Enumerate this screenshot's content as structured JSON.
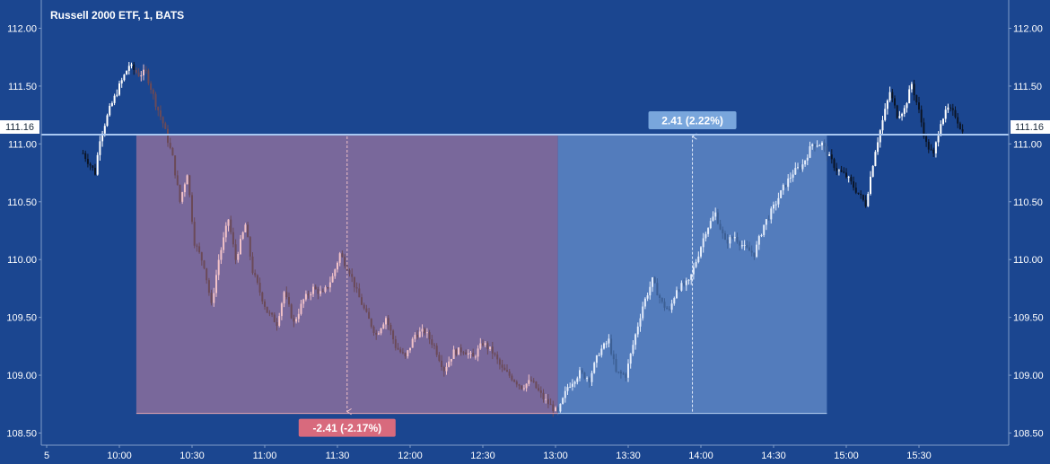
{
  "chart_data": {
    "type": "candlestick",
    "title": "Russell 2000 ETF, 1, BATS",
    "ylim": [
      108.4,
      112.1
    ],
    "y_ticks": [
      "112.00",
      "111.50",
      "111.00",
      "110.50",
      "110.00",
      "109.50",
      "109.00",
      "108.50"
    ],
    "x_ticks": [
      "5",
      "10:00",
      "10:30",
      "11:00",
      "11:30",
      "12:00",
      "12:30",
      "13:00",
      "13:30",
      "14:00",
      "14:30",
      "15:00",
      "15:30"
    ],
    "current_price_label": "111.16",
    "reference_level": 111.08,
    "grid": false,
    "colors": {
      "background": "#1b4690",
      "up": "#ffffff",
      "down": "#0b1424",
      "decline_zone": "#8a6f9e",
      "rally_zone": "#5d86c4",
      "decline_candle_up": "#f2c2c8",
      "decline_candle_down": "#6b4a58",
      "rally_candle_up": "#e3ecfb",
      "rally_candle_down": "#3c5f94",
      "level_line": "#a9c8f2",
      "decline_badge": "#d86a7d",
      "rally_badge": "#79a6dc"
    },
    "decline_measure": {
      "label": "-2.41 (-2.17%)",
      "start_time": "10:07",
      "end_time": "13:01",
      "from_price": 111.08,
      "to_price": 108.67
    },
    "rally_measure": {
      "label": "2.41 (2.22%)",
      "start_time": "13:01",
      "end_time": "14:52",
      "from_price": 108.67,
      "to_price": 111.08
    },
    "path_anchors": [
      [
        "09:45",
        110.92
      ],
      [
        "09:50",
        110.75
      ],
      [
        "09:52",
        111.05
      ],
      [
        "09:56",
        111.3
      ],
      [
        "10:00",
        111.5
      ],
      [
        "10:04",
        111.68
      ],
      [
        "10:08",
        111.6
      ],
      [
        "10:11",
        111.62
      ],
      [
        "10:15",
        111.35
      ],
      [
        "10:18",
        111.18
      ],
      [
        "10:22",
        110.88
      ],
      [
        "10:25",
        110.5
      ],
      [
        "10:28",
        110.75
      ],
      [
        "10:31",
        110.15
      ],
      [
        "10:35",
        109.95
      ],
      [
        "10:38",
        109.6
      ],
      [
        "10:41",
        110.0
      ],
      [
        "10:45",
        110.35
      ],
      [
        "10:48",
        110.0
      ],
      [
        "10:52",
        110.3
      ],
      [
        "10:55",
        109.9
      ],
      [
        "10:58",
        109.72
      ],
      [
        "11:01",
        109.55
      ],
      [
        "11:05",
        109.45
      ],
      [
        "11:08",
        109.72
      ],
      [
        "11:12",
        109.45
      ],
      [
        "11:16",
        109.65
      ],
      [
        "11:20",
        109.75
      ],
      [
        "11:24",
        109.7
      ],
      [
        "11:28",
        109.85
      ],
      [
        "11:31",
        110.05
      ],
      [
        "11:35",
        109.9
      ],
      [
        "11:38",
        109.72
      ],
      [
        "11:42",
        109.52
      ],
      [
        "11:46",
        109.35
      ],
      [
        "11:50",
        109.5
      ],
      [
        "11:54",
        109.25
      ],
      [
        "11:58",
        109.15
      ],
      [
        "12:02",
        109.35
      ],
      [
        "12:06",
        109.38
      ],
      [
        "12:10",
        109.25
      ],
      [
        "12:14",
        109.05
      ],
      [
        "12:18",
        109.2
      ],
      [
        "12:22",
        109.22
      ],
      [
        "12:26",
        109.15
      ],
      [
        "12:30",
        109.28
      ],
      [
        "12:34",
        109.2
      ],
      [
        "12:38",
        109.05
      ],
      [
        "12:42",
        108.98
      ],
      [
        "12:46",
        108.9
      ],
      [
        "12:50",
        108.95
      ],
      [
        "12:55",
        108.8
      ],
      [
        "13:01",
        108.67
      ],
      [
        "13:05",
        108.9
      ],
      [
        "13:10",
        109.02
      ],
      [
        "13:14",
        108.97
      ],
      [
        "13:18",
        109.2
      ],
      [
        "13:22",
        109.3
      ],
      [
        "13:25",
        109.02
      ],
      [
        "13:29",
        109.0
      ],
      [
        "13:33",
        109.35
      ],
      [
        "13:36",
        109.6
      ],
      [
        "13:40",
        109.82
      ],
      [
        "13:44",
        109.62
      ],
      [
        "13:47",
        109.55
      ],
      [
        "13:50",
        109.75
      ],
      [
        "13:55",
        109.8
      ],
      [
        "13:59",
        110.05
      ],
      [
        "14:02",
        110.25
      ],
      [
        "14:06",
        110.4
      ],
      [
        "14:10",
        110.15
      ],
      [
        "14:14",
        110.2
      ],
      [
        "14:18",
        110.1
      ],
      [
        "14:22",
        110.05
      ],
      [
        "14:26",
        110.3
      ],
      [
        "14:30",
        110.45
      ],
      [
        "14:34",
        110.62
      ],
      [
        "14:38",
        110.75
      ],
      [
        "14:42",
        110.82
      ],
      [
        "14:46",
        111.0
      ],
      [
        "14:50",
        111.0
      ],
      [
        "14:53",
        110.88
      ],
      [
        "14:56",
        110.78
      ],
      [
        "15:00",
        110.72
      ],
      [
        "15:04",
        110.6
      ],
      [
        "15:08",
        110.48
      ],
      [
        "15:12",
        110.95
      ],
      [
        "15:15",
        111.2
      ],
      [
        "15:18",
        111.45
      ],
      [
        "15:21",
        111.25
      ],
      [
        "15:24",
        111.3
      ],
      [
        "15:27",
        111.52
      ],
      [
        "15:30",
        111.28
      ],
      [
        "15:33",
        111.0
      ],
      [
        "15:36",
        110.9
      ],
      [
        "15:39",
        111.2
      ],
      [
        "15:42",
        111.3
      ],
      [
        "15:45",
        111.25
      ],
      [
        "15:48",
        111.1
      ]
    ]
  }
}
